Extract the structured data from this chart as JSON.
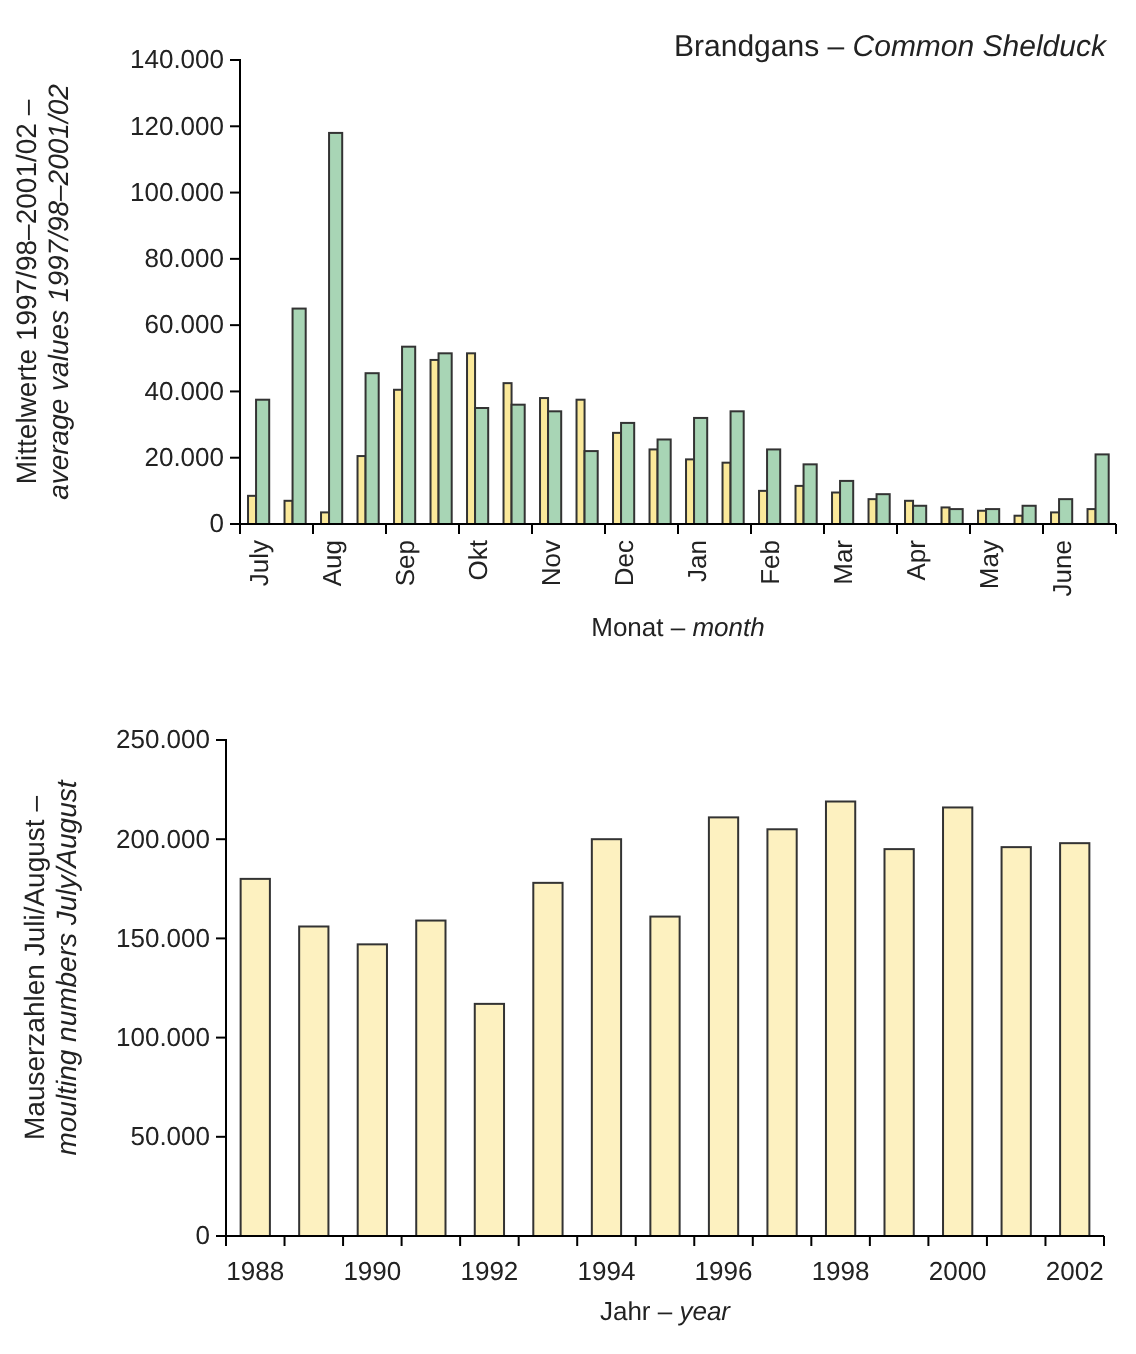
{
  "chart_data": [
    {
      "type": "bar",
      "title": "Brandgans – Common Shelduck",
      "xlabel": "Monat – month",
      "ylabel": "Mittelwerte 1997/98–2001/02 – average values 1997/98–2001/02",
      "categories": [
        "July",
        null,
        "Aug",
        null,
        "Sep",
        null,
        "Okt",
        null,
        "Nov",
        null,
        "Dec",
        null,
        "Jan",
        null,
        "Feb",
        null,
        "Mar",
        null,
        "Apr",
        null,
        "May",
        null,
        "June",
        null
      ],
      "series": [
        {
          "color": "#fbe99a",
          "values": [
            8500,
            7000,
            3500,
            20500,
            40500,
            49500,
            51500,
            42500,
            38000,
            37500,
            27500,
            22500,
            19500,
            18500,
            10000,
            11500,
            9500,
            7500,
            7000,
            5000,
            4000,
            2500,
            3500,
            4500
          ]
        },
        {
          "color": "#a8d5b5",
          "values": [
            37500,
            65000,
            118000,
            45500,
            53500,
            51500,
            35000,
            36000,
            34000,
            22000,
            30500,
            25500,
            32000,
            34000,
            22500,
            18000,
            13000,
            9000,
            5500,
            4500,
            4500,
            5500,
            7500,
            21000
          ]
        }
      ],
      "ylim": [
        0,
        140000
      ],
      "yticks": [
        0,
        {
          "value": 20000,
          "label": "20.000"
        },
        {
          "value": 40000,
          "label": "40.000"
        },
        {
          "value": 60000,
          "label": "60.000"
        },
        {
          "value": 80000,
          "label": "80.000"
        },
        {
          "value": 100000,
          "label": "100.000"
        },
        {
          "value": 120000,
          "label": "120.000"
        },
        {
          "value": 140000,
          "label": "140.000"
        }
      ]
    },
    {
      "type": "bar",
      "xlabel": "Jahr – year",
      "ylabel": "Mauserzahlen Juli/August – moulting numbers July/August",
      "categories": [
        "1988",
        null,
        "1990",
        null,
        "1992",
        null,
        "1994",
        null,
        "1996",
        null,
        "1998",
        null,
        "2000",
        null,
        "2002"
      ],
      "series": [
        {
          "color": "#fdf1c0",
          "values": [
            180000,
            156000,
            147000,
            159000,
            117000,
            178000,
            200000,
            161000,
            211000,
            205000,
            219000,
            195000,
            216000,
            196000,
            198000
          ]
        }
      ],
      "ylim": [
        0,
        250000
      ],
      "yticks": [
        0,
        {
          "value": 50000,
          "label": "50.000"
        },
        {
          "value": 100000,
          "label": "100.000"
        },
        {
          "value": 150000,
          "label": "150.000"
        },
        {
          "value": 200000,
          "label": "200.000"
        },
        {
          "value": 250000,
          "label": "250.000"
        }
      ]
    }
  ]
}
